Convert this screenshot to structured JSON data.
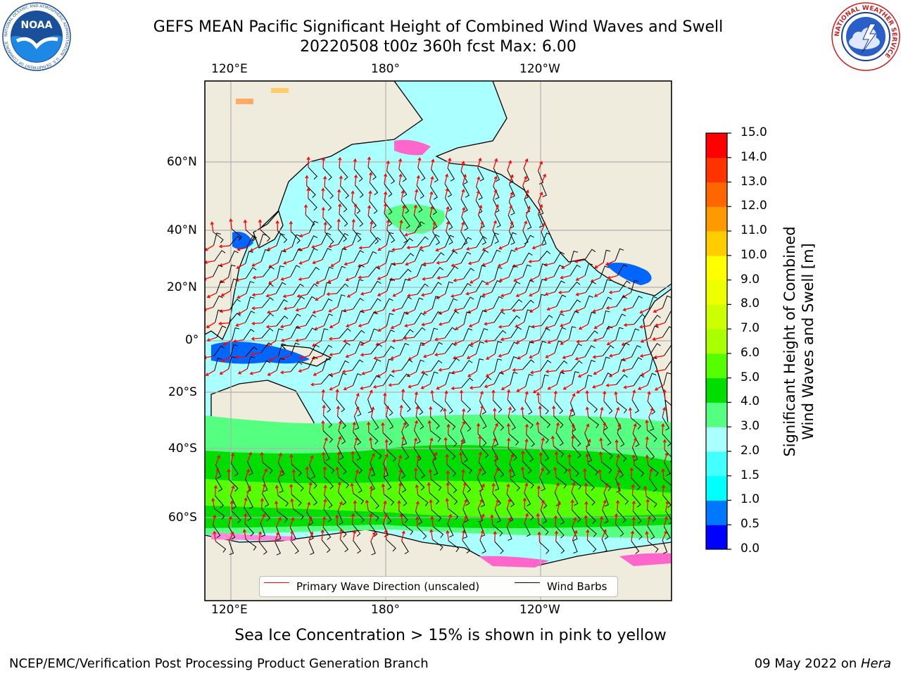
{
  "title": {
    "line1": "GEFS MEAN Pacific Significant Height of Combined Wind Waves and Swell",
    "line2": "20220508 t00z 360h fcst   Max: 6.00"
  },
  "map": {
    "lon_labels": [
      "120°E",
      "180°",
      "120°W"
    ],
    "lat_labels": [
      "60°N",
      "40°N",
      "20°N",
      "0°",
      "20°S",
      "40°S",
      "60°S"
    ],
    "wave_height_fields": [
      {
        "level": "2.0-3.0 m",
        "region": "North Pacific broad swell",
        "color": "#aaffff"
      },
      {
        "level": "3.0-4.0 m",
        "region": "North Pacific storm track near 45°N",
        "color": "#55ff80"
      },
      {
        "level": "4.0-6.0 m",
        "region": "Southern Ocean band 40°S-60°S",
        "color": "#33ee33"
      },
      {
        "level": "0.0-1.0 m",
        "region": "Maritime Continent and Gulf of California",
        "color": "#0066ff"
      }
    ],
    "land_color": "#efecdd",
    "grid_color": "#b0b0b0",
    "sea_ice": "pink to yellow along polar coasts"
  },
  "legend": {
    "items": [
      {
        "label": "Primary Wave Direction (unscaled)",
        "color": "#ff0000"
      },
      {
        "label": "Wind Barbs",
        "color": "#000000"
      }
    ]
  },
  "colorbar": {
    "label_line1": "Significant Height of Combined",
    "label_line2": "Wind Waves and Swell [m]",
    "ticks": [
      "0.0",
      "0.5",
      "1.0",
      "1.5",
      "2.0",
      "3.0",
      "4.0",
      "5.0",
      "6.0",
      "7.0",
      "8.0",
      "9.0",
      "10.0",
      "11.0",
      "12.0",
      "13.0",
      "14.0",
      "15.0"
    ],
    "colors": [
      "#0000ff",
      "#0077ff",
      "#00ffff",
      "#44ffff",
      "#aaffff",
      "#55ff80",
      "#00dd00",
      "#55ff00",
      "#aaff00",
      "#ccff00",
      "#eeff00",
      "#ffff00",
      "#ffcc00",
      "#ff9900",
      "#ff6600",
      "#ff3300",
      "#ff0000"
    ]
  },
  "footnote": "Sea Ice Concentration > 15% is shown in pink to yellow",
  "credit": "NCEP/EMC/Verification Post Processing Product Generation Branch",
  "date": {
    "text": "09 May 2022 on ",
    "system": "Hera"
  },
  "logos": {
    "noaa": {
      "name": "NOAA",
      "ring_text": "NATIONAL OCEANIC AND ATMOSPHERIC ADMINISTRATION · U.S. DEPARTMENT OF COMMERCE"
    },
    "nws": {
      "ring_text": "NATIONAL WEATHER SERVICE"
    }
  }
}
